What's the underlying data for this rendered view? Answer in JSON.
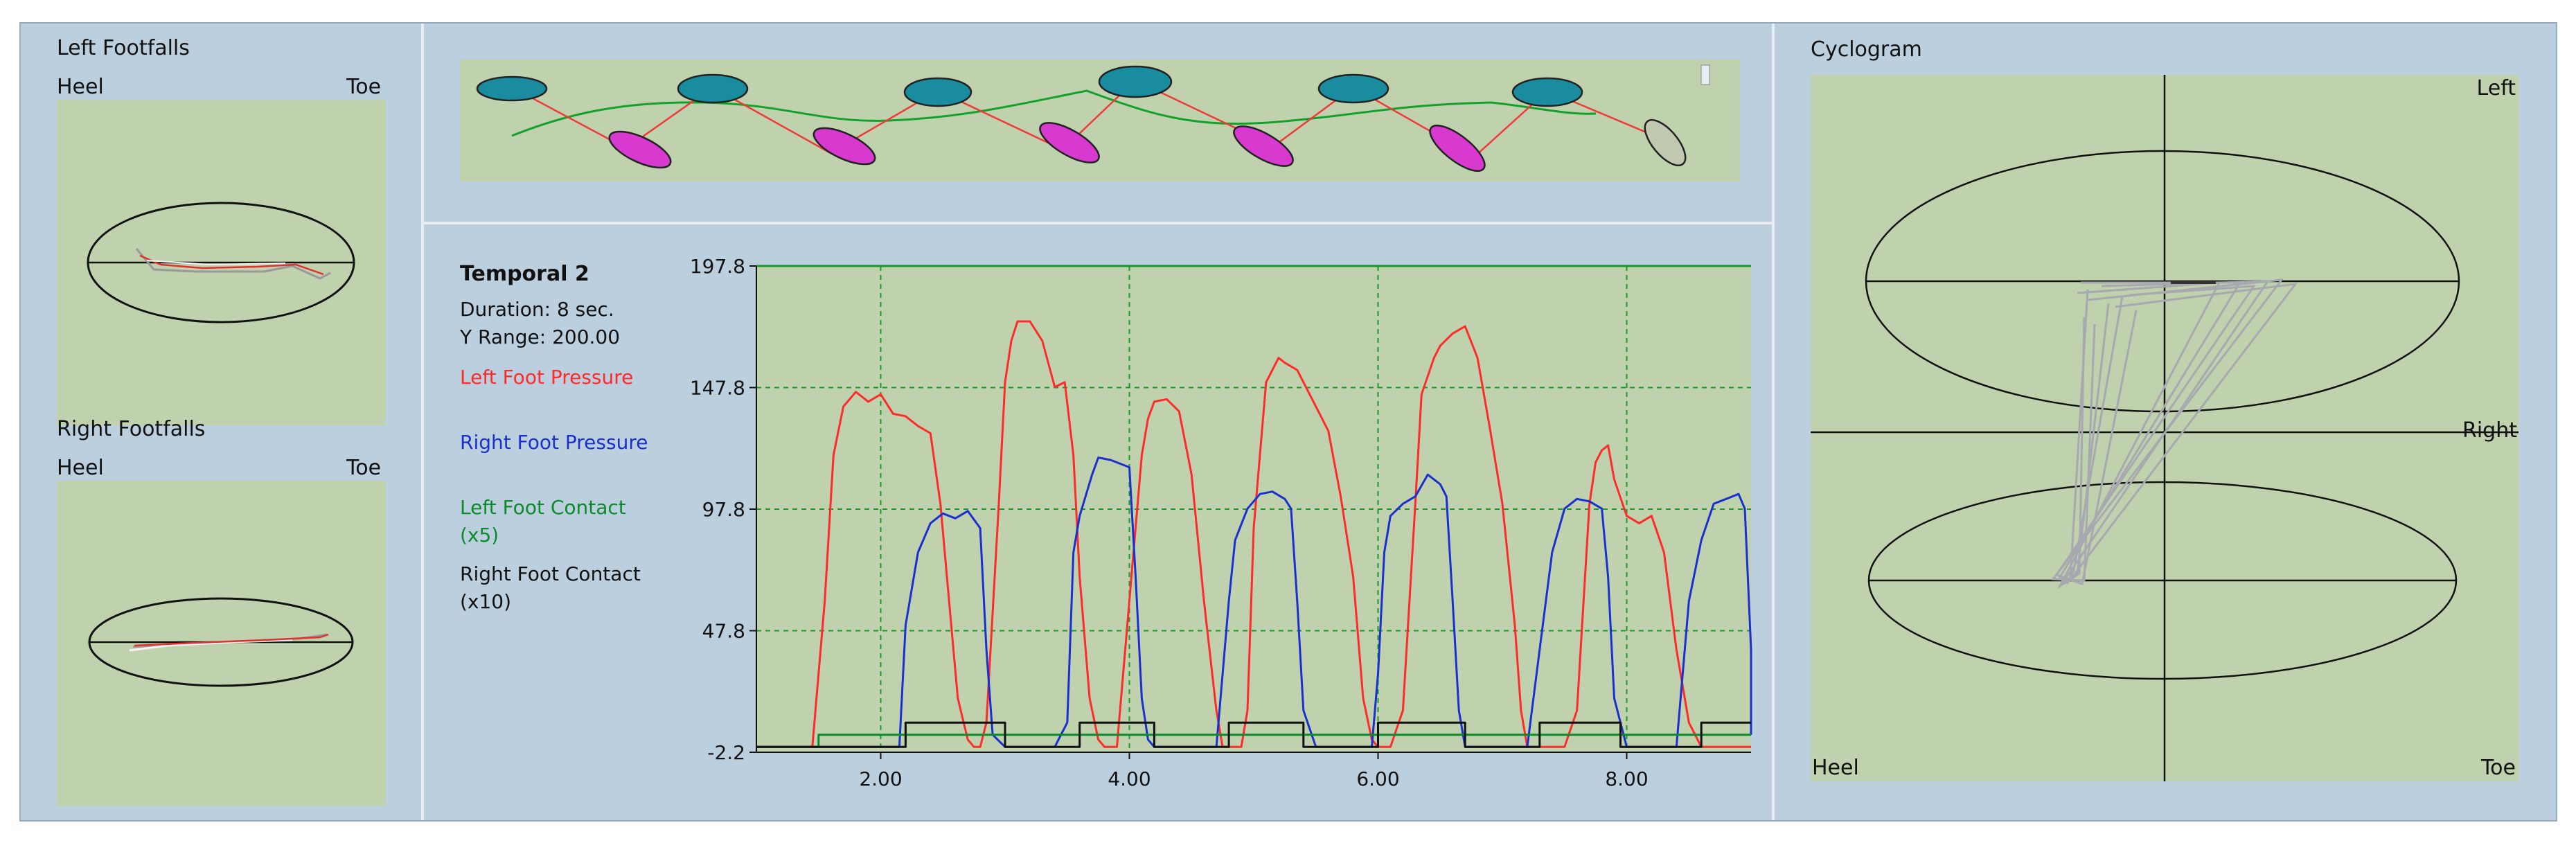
{
  "left_panel": {
    "left_footfalls_title": "Left Footfalls",
    "left_heel": "Heel",
    "left_toe": "Toe",
    "right_footfalls_title": "Right Footfalls",
    "right_heel": "Heel",
    "right_toe": "Toe"
  },
  "temporal": {
    "title": "Temporal 2",
    "duration": "Duration: 8 sec.",
    "y_range": "Y Range: 200.00",
    "legend": {
      "left_pressure": "Left Foot Pressure",
      "right_pressure": "Right Foot Pressure",
      "left_contact": "Left Foot Contact",
      "left_contact_scale": "(x5)",
      "right_contact": "Right Foot Contact",
      "right_contact_scale": "(x10)"
    }
  },
  "cyclogram": {
    "title": "Cyclogram",
    "left_label": "Left",
    "right_label": "Right",
    "heel_label": "Heel",
    "toe_label": "Toe"
  },
  "colors": {
    "left_pressure": "#ff2a2a",
    "right_pressure": "#1a2fd0",
    "left_contact": "#0a8a2a",
    "right_contact": "#111111",
    "plot_bg": "#bfd2ad",
    "grid": "#1a9a2a"
  },
  "chart_data": {
    "type": "line",
    "title": "Temporal 2",
    "xlabel": "",
    "ylabel": "",
    "xlim": [
      1.0,
      9.0
    ],
    "ylim": [
      -2.2,
      197.8
    ],
    "x_ticks": [
      2.0,
      4.0,
      6.0,
      8.0
    ],
    "x_tick_labels": [
      "2.00",
      "4.00",
      "6.00",
      "8.00"
    ],
    "y_ticks": [
      -2.2,
      47.8,
      97.8,
      147.8,
      197.8
    ],
    "y_tick_labels": [
      "-2.2",
      "47.8",
      "97.8",
      "147.8",
      "197.8"
    ],
    "grid": true,
    "series": [
      {
        "name": "Left Foot Pressure",
        "x": [
          1.0,
          1.45,
          1.55,
          1.62,
          1.7,
          1.8,
          1.9,
          2.0,
          2.1,
          2.2,
          2.3,
          2.4,
          2.48,
          2.55,
          2.62,
          2.7,
          2.75,
          2.8,
          2.85,
          2.95,
          3.0,
          3.05,
          3.1,
          3.2,
          3.3,
          3.4,
          3.48,
          3.55,
          3.6,
          3.68,
          3.75,
          3.8,
          3.9,
          3.95,
          4.1,
          4.15,
          4.2,
          4.3,
          4.4,
          4.5,
          4.6,
          4.7,
          4.75,
          4.8,
          4.9,
          4.95,
          5.0,
          5.1,
          5.2,
          5.25,
          5.35,
          5.4,
          5.5,
          5.6,
          5.7,
          5.8,
          5.88,
          5.95,
          6.0,
          6.05,
          6.1,
          6.2,
          6.3,
          6.35,
          6.45,
          6.5,
          6.6,
          6.7,
          6.8,
          6.9,
          7.0,
          7.1,
          7.15,
          7.2,
          7.3,
          7.4,
          7.5,
          7.6,
          7.7,
          7.75,
          7.8,
          7.85,
          7.9,
          8.0,
          8.1,
          8.2,
          8.3,
          8.4,
          8.5,
          8.6,
          8.7,
          8.8,
          9.0
        ],
        "y": [
          0,
          0,
          60,
          120,
          140,
          146,
          142,
          145,
          137,
          136,
          132,
          129,
          100,
          60,
          20,
          3,
          0,
          0,
          10,
          100,
          150,
          167,
          175,
          175,
          167,
          148,
          150,
          120,
          70,
          20,
          3,
          0,
          0,
          30,
          120,
          135,
          142,
          143,
          138,
          112,
          60,
          15,
          0,
          0,
          0,
          15,
          90,
          150,
          160,
          158,
          155,
          150,
          140,
          130,
          103,
          70,
          20,
          3,
          0,
          0,
          0,
          15,
          100,
          145,
          160,
          165,
          170,
          173,
          160,
          131,
          100,
          50,
          15,
          0,
          0,
          0,
          0,
          15,
          100,
          117,
          122,
          124,
          110,
          95,
          92,
          95,
          80,
          40,
          10,
          0,
          0,
          0,
          0
        ]
      },
      {
        "name": "Right Foot Pressure",
        "x": [
          1.0,
          2.15,
          2.2,
          2.3,
          2.4,
          2.5,
          2.6,
          2.7,
          2.8,
          2.85,
          2.9,
          3.0,
          3.4,
          3.5,
          3.55,
          3.6,
          3.7,
          3.75,
          3.85,
          4.0,
          4.05,
          4.1,
          4.15,
          4.2,
          4.3,
          4.7,
          4.8,
          4.85,
          4.95,
          5.05,
          5.15,
          5.25,
          5.3,
          5.35,
          5.4,
          5.5,
          5.95,
          6.0,
          6.05,
          6.1,
          6.2,
          6.3,
          6.4,
          6.5,
          6.55,
          6.6,
          6.65,
          6.7,
          7.2,
          7.3,
          7.4,
          7.5,
          7.6,
          7.7,
          7.8,
          7.85,
          7.9,
          8.0,
          8.4,
          8.5,
          8.6,
          8.7,
          8.8,
          8.9,
          8.95,
          9.0,
          9.05
        ],
        "y": [
          0,
          0,
          50,
          80,
          92,
          96,
          94,
          97,
          90,
          40,
          5,
          0,
          0,
          10,
          80,
          95,
          112,
          119,
          118,
          115,
          70,
          20,
          3,
          0,
          0,
          0,
          60,
          85,
          98,
          104,
          105,
          102,
          98,
          60,
          15,
          0,
          0,
          30,
          80,
          95,
          100,
          103,
          112,
          108,
          103,
          60,
          15,
          0,
          0,
          40,
          80,
          98,
          102,
          101,
          98,
          70,
          20,
          0,
          0,
          60,
          85,
          100,
          102,
          104,
          98,
          40,
          5
        ]
      },
      {
        "name": "Left Foot Contact (x5)",
        "x": [
          1.0,
          1.5,
          1.5,
          9.0
        ],
        "y": [
          0,
          0,
          5,
          5
        ]
      },
      {
        "name": "Right Foot Contact (x10)",
        "x": [
          1.0,
          1.5,
          1.5,
          2.2,
          2.2,
          3.0,
          3.0,
          3.6,
          3.6,
          4.2,
          4.2,
          4.8,
          4.8,
          5.4,
          5.4,
          6.0,
          6.0,
          6.7,
          6.7,
          7.3,
          7.3,
          7.95,
          7.95,
          8.6,
          8.6,
          9.0
        ],
        "y": [
          0,
          0,
          0,
          0,
          10,
          10,
          0,
          0,
          10,
          10,
          0,
          0,
          10,
          10,
          0,
          0,
          10,
          10,
          0,
          0,
          10,
          10,
          0,
          0,
          10,
          10
        ]
      }
    ]
  }
}
